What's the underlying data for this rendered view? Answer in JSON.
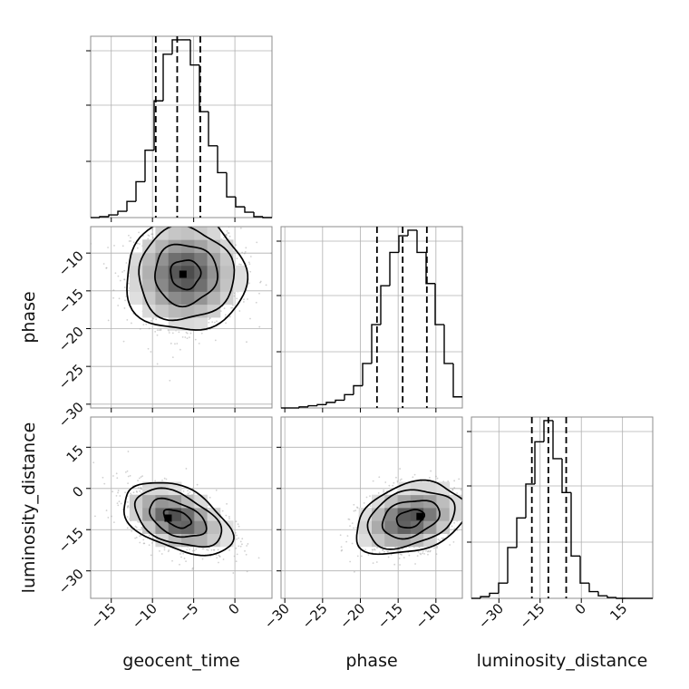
{
  "figure_type": "corner plot",
  "colors": {
    "hist_line": "#000000",
    "grid": "#b0b0b0",
    "samples": "#9a9a9a",
    "contour": "#000000",
    "frame": "#8c8c8c"
  },
  "axis_labels": {
    "geocent_time": "geocent_time",
    "phase": "phase",
    "luminosity_distance": "luminosity_distance"
  },
  "chart_data": [
    {
      "type": "histogram",
      "panel": "1D geocent_time",
      "xlim": [
        -17.5,
        4.5
      ],
      "bin_edges": [
        -17.5,
        -16.4,
        -15.3,
        -14.2,
        -13.1,
        -12.0,
        -10.9,
        -9.8,
        -8.7,
        -7.6,
        -6.5,
        -5.4,
        -4.3,
        -3.2,
        -2.1,
        -1.0,
        0.1,
        1.2,
        2.3,
        3.4,
        4.5
      ],
      "counts": [
        0,
        1,
        3,
        7,
        18,
        40,
        75,
        130,
        182,
        198,
        198,
        170,
        118,
        80,
        50,
        23,
        12,
        6,
        1,
        0
      ],
      "quantile_lines": [
        -9.6,
        -7.0,
        -4.2
      ],
      "grid": true
    },
    {
      "type": "histogram",
      "panel": "1D phase",
      "xlim": [
        -30.5,
        -6.5
      ],
      "bin_edges": [
        -30.5,
        -29.3,
        -28.1,
        -26.9,
        -25.7,
        -24.5,
        -23.3,
        -22.1,
        -20.9,
        -19.7,
        -18.5,
        -17.3,
        -16.1,
        -14.9,
        -13.7,
        -12.5,
        -11.3,
        -10.1,
        -8.9,
        -7.7,
        -6.5
      ],
      "counts": [
        0,
        0,
        1,
        2,
        3,
        5,
        7,
        12,
        20,
        40,
        75,
        110,
        140,
        155,
        160,
        140,
        112,
        75,
        40,
        10
      ],
      "quantile_lines": [
        -17.8,
        -14.4,
        -11.2
      ],
      "grid": true
    },
    {
      "type": "histogram",
      "panel": "1D luminosity_distance",
      "xlim": [
        -40,
        26
      ],
      "bin_edges": [
        -40,
        -36.7,
        -33.4,
        -30.1,
        -26.8,
        -23.5,
        -20.2,
        -16.9,
        -13.6,
        -10.3,
        -7.0,
        -3.7,
        -0.4,
        2.9,
        6.2,
        9.5,
        12.8,
        16.1,
        19.4,
        22.7,
        26.0
      ],
      "counts": [
        0,
        2,
        6,
        18,
        60,
        95,
        135,
        185,
        210,
        165,
        125,
        50,
        18,
        8,
        3,
        1,
        0,
        0,
        0,
        0
      ],
      "quantile_lines": [
        -18.0,
        -12.0,
        -5.5
      ],
      "xticks": [
        -30,
        -15,
        0,
        15
      ],
      "grid": true
    },
    {
      "type": "scatter",
      "panel": "2D phase vs geocent_time",
      "xlim": [
        -17.5,
        4.5
      ],
      "ylim": [
        -30.5,
        -6.5
      ],
      "center": [
        -6.0,
        -12.8
      ],
      "sigma": [
        3.3,
        3.5
      ],
      "correlation": 0,
      "mode_marker": [
        -6.3,
        -12.8
      ],
      "yticks": [
        -30,
        -25,
        -20,
        -15,
        -10
      ],
      "grid": true
    },
    {
      "type": "scatter",
      "panel": "2D luminosity_distance vs geocent_time",
      "xlim": [
        -17.5,
        4.5
      ],
      "ylim": [
        -40,
        26
      ],
      "center": [
        -7.0,
        -11.0
      ],
      "sigma": [
        3.0,
        6.0
      ],
      "correlation": -0.45,
      "mode_marker": [
        -8.1,
        -10.8
      ],
      "xticks": [
        -15,
        -10,
        -5,
        0
      ],
      "yticks": [
        -30,
        -15,
        0,
        15
      ],
      "grid": true
    },
    {
      "type": "scatter",
      "panel": "2D luminosity_distance vs phase",
      "xlim": [
        -30.5,
        -6.5
      ],
      "ylim": [
        -40,
        26
      ],
      "center": [
        -13.4,
        -11.0
      ],
      "sigma": [
        3.3,
        6.0
      ],
      "correlation": 0.3,
      "mode_marker": [
        -12.1,
        -10.2
      ],
      "xticks": [
        -30,
        -25,
        -20,
        -15,
        -10
      ],
      "grid": true
    }
  ]
}
